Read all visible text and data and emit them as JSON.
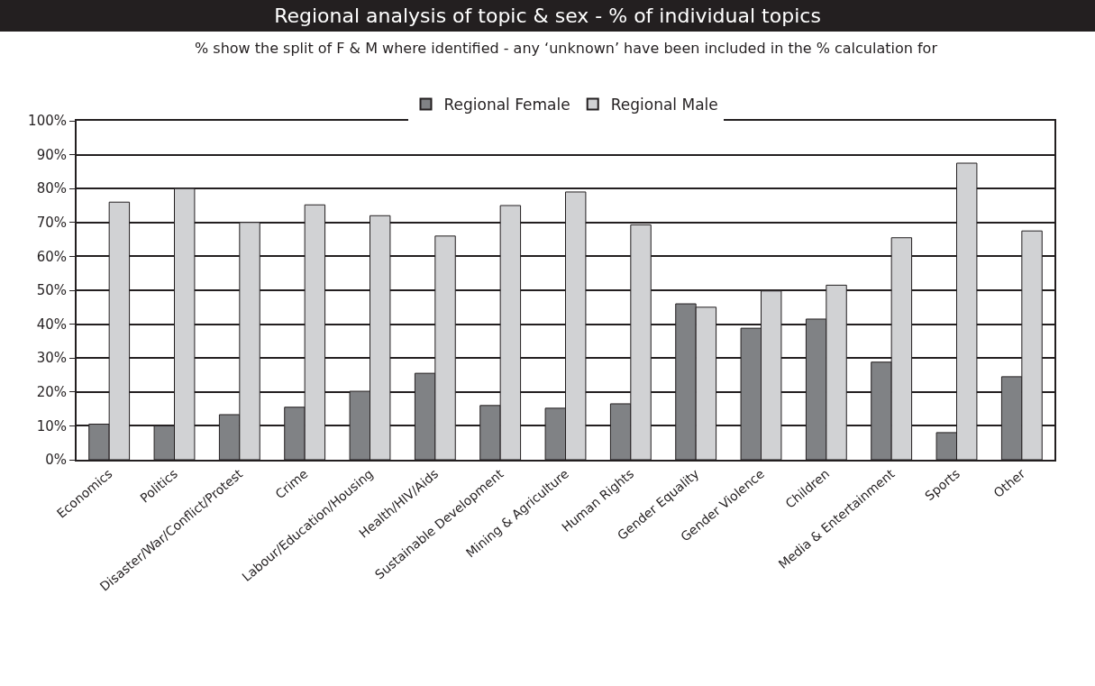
{
  "chart_data": {
    "type": "bar",
    "title": "Regional analysis of topic & sex - % of individual topics",
    "subtitle": "% show the split of F & M where identified - any ‘unknown’ have been included in the % calculation for",
    "categories": [
      "Economics",
      "Politics",
      "Disaster/War/Conflict/Protest",
      "Crime",
      "Labour/Education/Housing",
      "Health/HIV/Aids",
      "Sustainable Development",
      "Mining & Agriculture",
      "Human Rights",
      "Gender Equality",
      "Gender Violence",
      "Children",
      "Media & Entertainment",
      "Sports",
      "Other"
    ],
    "series": [
      {
        "name": "Regional Female",
        "color": "#808285",
        "values": [
          10.5,
          10,
          13.3,
          15.5,
          20.2,
          25.5,
          16,
          15.2,
          16.5,
          46,
          38.8,
          41.5,
          28.8,
          8,
          24.5
        ]
      },
      {
        "name": "Regional Male",
        "color": "#d1d2d4",
        "values": [
          76,
          80,
          70,
          75.2,
          72,
          66,
          75,
          79,
          69.3,
          45,
          49.8,
          51.5,
          65.5,
          87.5,
          67.5
        ]
      }
    ],
    "ylim": [
      0,
      100
    ],
    "yticks": [
      {
        "value": 0,
        "label": "0%"
      },
      {
        "value": 10,
        "label": "10%"
      },
      {
        "value": 20,
        "label": "20%"
      },
      {
        "value": 30,
        "label": "30%"
      },
      {
        "value": 40,
        "label": "40%"
      },
      {
        "value": 50,
        "label": "50%"
      },
      {
        "value": 60,
        "label": "60%"
      },
      {
        "value": 70,
        "label": "70%"
      },
      {
        "value": 80,
        "label": "80%"
      },
      {
        "value": 90,
        "label": "90%"
      },
      {
        "value": 100,
        "label": "100%"
      }
    ],
    "grid": "y",
    "legend": "top"
  }
}
